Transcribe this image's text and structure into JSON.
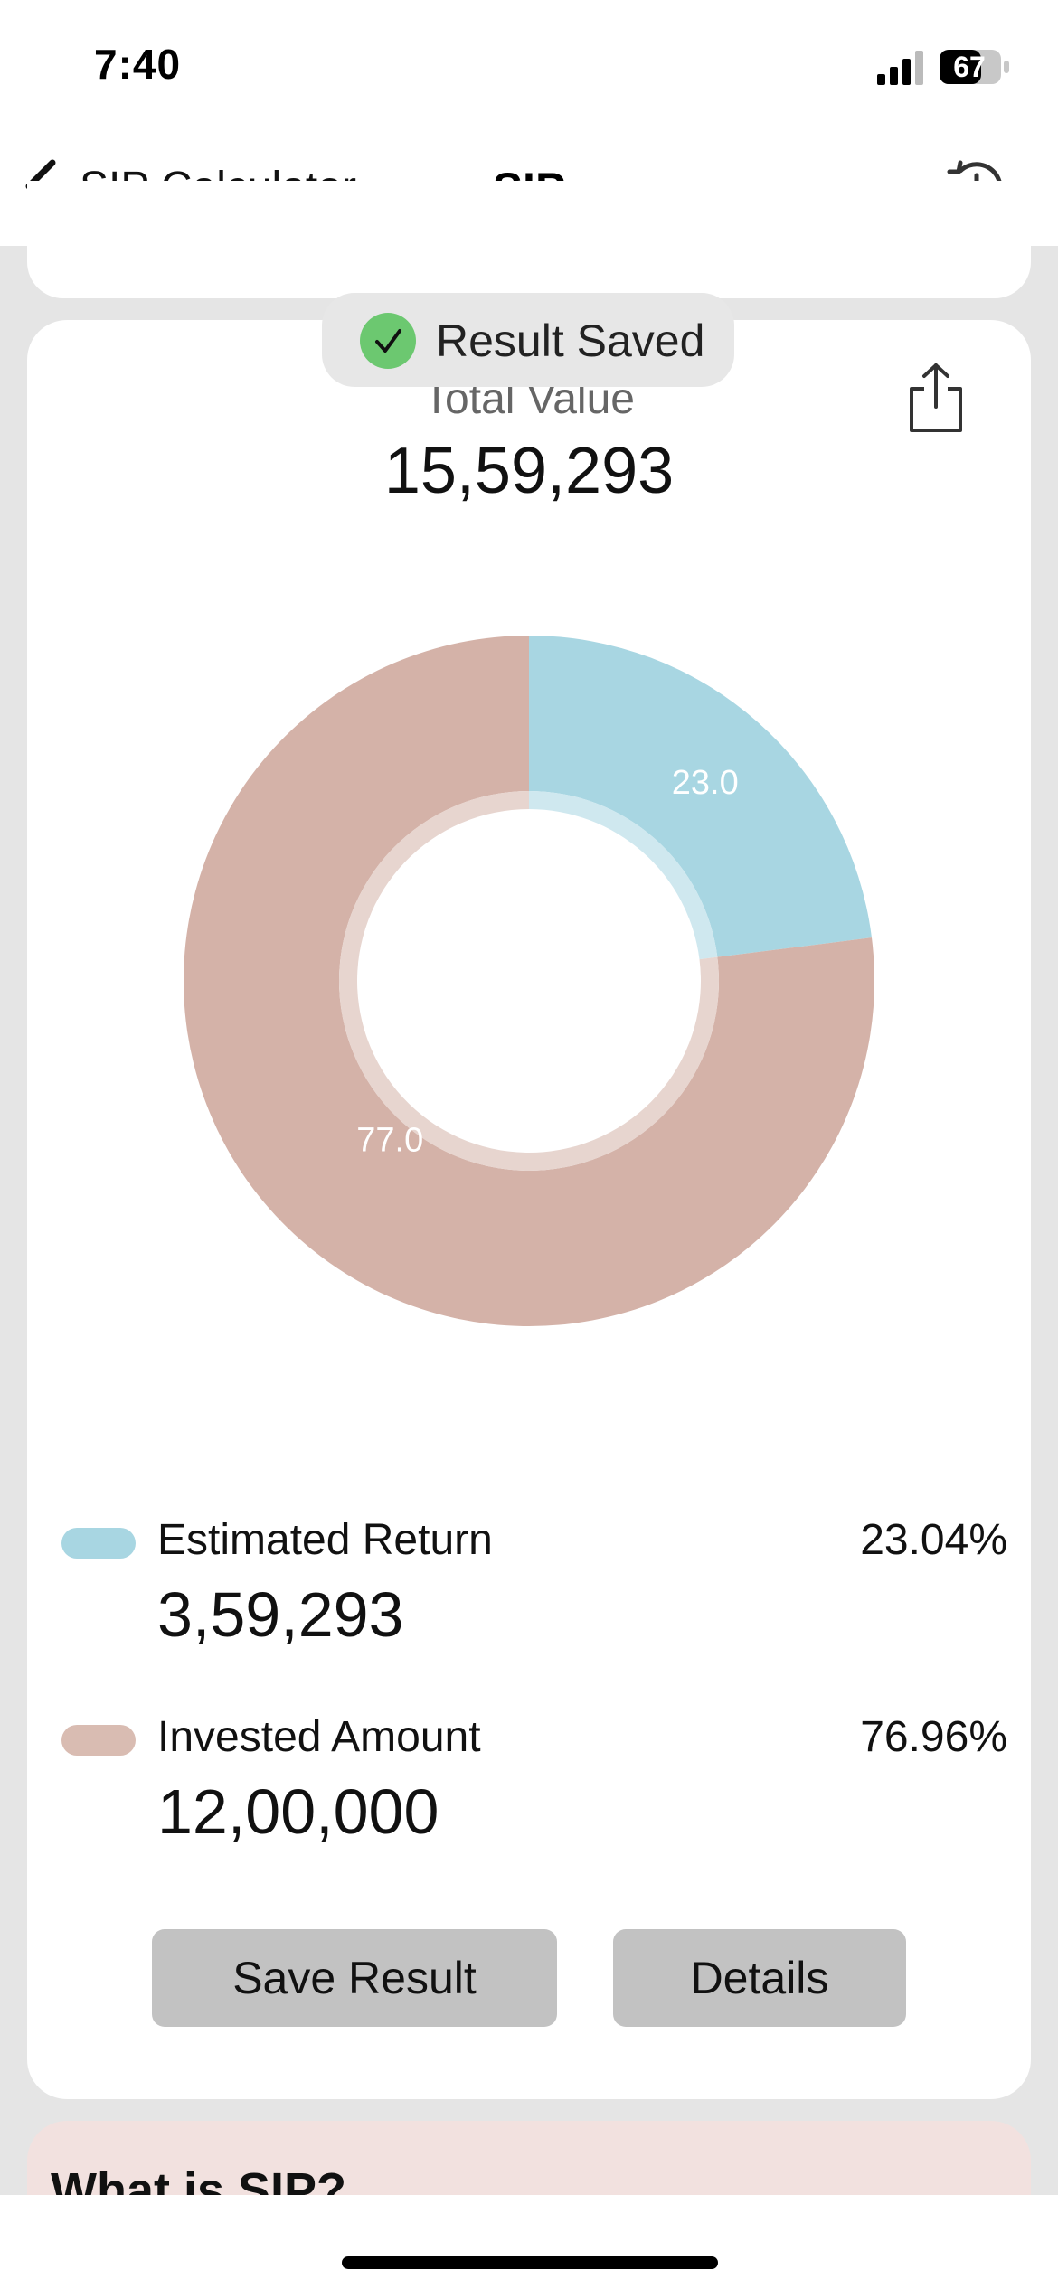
{
  "status_bar": {
    "time": "7:40",
    "battery": "67",
    "signal_icon": "cellular-signal-icon",
    "battery_icon": "battery-icon"
  },
  "nav": {
    "back_icon": "chevron-left-icon",
    "back_label": "SIP Calculator",
    "title": "SIP",
    "history_icon": "history-clock-icon"
  },
  "toast": {
    "icon": "checkmark-circle-icon",
    "text": "Result Saved",
    "color": "#6cc870"
  },
  "result": {
    "share_icon": "share-icon",
    "total_label": "Total Value",
    "total_value": "15,59,293"
  },
  "chart_data": {
    "type": "pie",
    "categories": [
      "Estimated Return",
      "Invested Amount"
    ],
    "values": [
      23.0,
      77.0
    ],
    "labels": [
      "23.0",
      "77.0"
    ],
    "colors": [
      "#a8d6e2",
      "#d4b2a8"
    ]
  },
  "legend": [
    {
      "label": "Estimated Return",
      "percent": "23.04%",
      "value": "3,59,293",
      "color": "#a8d6e2"
    },
    {
      "label": "Invested Amount",
      "percent": "76.96%",
      "value": "12,00,000",
      "color": "#d9bcb2"
    }
  ],
  "buttons": {
    "save": "Save Result",
    "details": "Details"
  },
  "info": {
    "title": "What is SIP?"
  }
}
